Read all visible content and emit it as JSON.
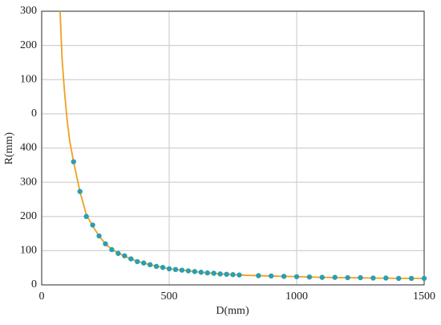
{
  "chart_data": {
    "type": "scatter-line",
    "x_label": "D(mm)",
    "y_label": "R(mm)",
    "xlim": [
      0,
      1500
    ],
    "xticks": [
      0,
      500,
      1000,
      1500
    ],
    "ylim": [
      0,
      800
    ],
    "yticks": [
      0,
      100,
      200,
      300,
      400,
      {
        "value": 500,
        "label": "0"
      },
      {
        "value": 600,
        "label": "100"
      },
      {
        "value": 700,
        "label": "200"
      },
      {
        "value": 800,
        "label": "300"
      }
    ],
    "grid": true,
    "series": [
      {
        "color": "#f0a020",
        "mode": "line",
        "x": [
          72,
          80,
          90,
          100,
          110,
          125,
          150,
          175,
          200,
          225,
          250,
          275,
          300,
          325,
          350,
          375,
          400,
          425,
          450,
          475,
          500,
          550,
          600,
          650,
          700,
          750,
          800,
          900,
          1000,
          1100,
          1200,
          1300,
          1400,
          1500
        ],
        "values": [
          800,
          660,
          560,
          480,
          420,
          360,
          273,
          205,
          172,
          143,
          120,
          104,
          93,
          84,
          76,
          69,
          64,
          59,
          55,
          51,
          47,
          43,
          39,
          35,
          32,
          30,
          28,
          26,
          24,
          22,
          21,
          20,
          19,
          19
        ]
      },
      {
        "color": "#2a9fb0",
        "mode": "markers",
        "x": [
          125,
          150,
          175,
          200,
          225,
          250,
          275,
          300,
          325,
          350,
          375,
          400,
          425,
          450,
          475,
          500,
          525,
          550,
          575,
          600,
          625,
          650,
          675,
          700,
          725,
          750,
          775,
          850,
          900,
          950,
          1000,
          1050,
          1100,
          1150,
          1200,
          1250,
          1300,
          1350,
          1400,
          1450,
          1500
        ],
        "values": [
          360,
          273,
          200,
          175,
          143,
          120,
          103,
          92,
          85,
          76,
          68,
          64,
          59,
          54,
          51,
          47,
          45,
          43,
          41,
          39,
          37,
          35,
          34,
          32,
          31,
          30,
          29,
          27,
          26,
          25,
          24,
          23,
          22,
          22,
          21,
          21,
          20,
          20,
          19,
          19,
          19
        ]
      }
    ]
  }
}
